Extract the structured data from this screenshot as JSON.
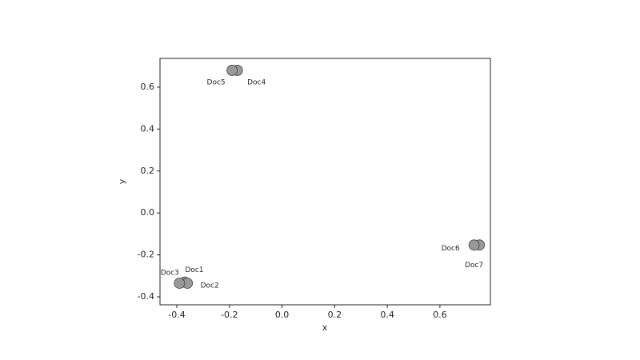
{
  "chart_data": {
    "type": "scatter",
    "xlabel": "x",
    "ylabel": "y",
    "labels": [
      "Doc1",
      "Doc2",
      "Doc3",
      "Doc4",
      "Doc5",
      "Doc6",
      "Doc7"
    ],
    "x": [
      -0.37,
      -0.36,
      -0.39,
      -0.17,
      -0.19,
      0.75,
      0.73
    ],
    "values": [
      -0.33,
      -0.335,
      -0.335,
      0.68,
      0.68,
      -0.153,
      -0.153
    ],
    "color": "#999999",
    "xlim": [
      -0.464,
      0.792
    ],
    "ylim": [
      -0.438,
      0.737
    ],
    "xticks": [
      -0.4,
      -0.2,
      {
        "value": 0,
        "label": "0.0"
      },
      0.2,
      0.4,
      0.6
    ],
    "yticks": [
      -0.4,
      -0.2,
      {
        "value": 0,
        "label": "0.0"
      },
      0.2,
      0.4,
      0.6
    ]
  }
}
